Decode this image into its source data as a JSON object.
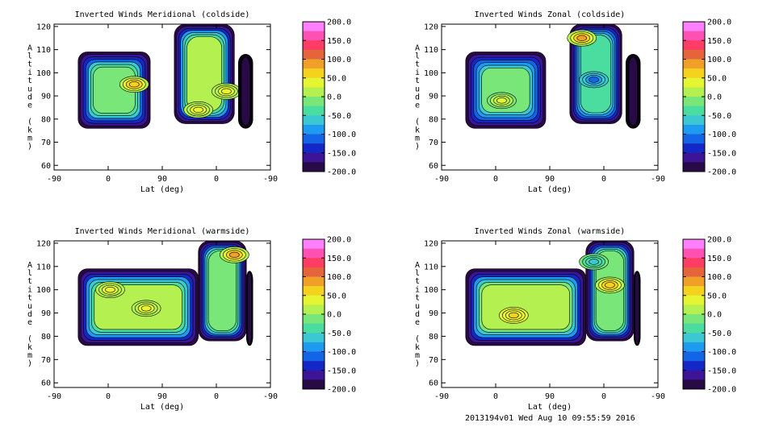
{
  "footer": "2013194v01 Wed Aug 10 09:55:59 2016",
  "colorbar": {
    "labels": [
      "200.0",
      "150.0",
      "100.0",
      "50.0",
      "0.0",
      "-50.0",
      "-100.0",
      "-150.0",
      "-200.0"
    ],
    "colors": [
      "#ff80ff",
      "#ff50b4",
      "#ff3c64",
      "#e6643c",
      "#f0a028",
      "#f5d21e",
      "#e6f532",
      "#b4f050",
      "#78e678",
      "#4bdca0",
      "#3cc8d2",
      "#1e9bf0",
      "#1464e6",
      "#1428c8",
      "#3c1496",
      "#280a46"
    ]
  },
  "chart_data": [
    {
      "type": "heatmap",
      "title": "Inverted Winds Meridional (coldside)",
      "xlabel": "Lat (deg)",
      "ylabel": "Altitude (km)",
      "xticks": [
        "-90",
        "0",
        "90",
        "0",
        "-90"
      ],
      "yticks": [
        "60",
        "70",
        "80",
        "90",
        "100",
        "110",
        "120"
      ],
      "ylim": [
        58,
        121
      ],
      "clim": [
        -200,
        200
      ],
      "segments": [
        {
          "x": [
            -60,
            30
          ],
          "y": [
            76,
            109
          ],
          "mean": -5
        },
        {
          "x": [
            60,
            135
          ],
          "y": [
            78,
            121
          ],
          "mean": 5
        },
        {
          "x": [
            140,
            158
          ],
          "y": [
            76,
            108
          ],
          "mean": -210
        }
      ],
      "extremes": [
        {
          "x": 10,
          "y": 95,
          "value": 75
        },
        {
          "x": 90,
          "y": 84,
          "value": 35
        },
        {
          "x": 125,
          "y": 92,
          "value": 40
        }
      ]
    },
    {
      "type": "heatmap",
      "title": "Inverted Winds Zonal (coldside)",
      "xlabel": "Lat (deg)",
      "ylabel": "Altitude (km)",
      "xticks": [
        "-90",
        "0",
        "90",
        "0",
        "-90"
      ],
      "yticks": [
        "60",
        "70",
        "80",
        "90",
        "100",
        "110",
        "120"
      ],
      "ylim": [
        58,
        121
      ],
      "clim": [
        -200,
        200
      ],
      "segments": [
        {
          "x": [
            -60,
            40
          ],
          "y": [
            76,
            109
          ],
          "mean": -20
        },
        {
          "x": [
            70,
            135
          ],
          "y": [
            78,
            121
          ],
          "mean": -30
        },
        {
          "x": [
            140,
            158
          ],
          "y": [
            76,
            108
          ],
          "mean": -210
        }
      ],
      "extremes": [
        {
          "x": -15,
          "y": 88,
          "value": 40
        },
        {
          "x": 85,
          "y": 115,
          "value": 95
        },
        {
          "x": 100,
          "y": 97,
          "value": -110
        }
      ]
    },
    {
      "type": "heatmap",
      "title": "Inverted Winds Meridional (warmside)",
      "xlabel": "Lat (deg)",
      "ylabel": "Altitude (km)",
      "xticks": [
        "-90",
        "0",
        "90",
        "0",
        "-90"
      ],
      "yticks": [
        "60",
        "70",
        "80",
        "90",
        "100",
        "110",
        "120"
      ],
      "ylim": [
        58,
        121
      ],
      "clim": [
        -200,
        200
      ],
      "segments": [
        {
          "x": [
            -60,
            90
          ],
          "y": [
            76,
            109
          ],
          "mean": 5
        },
        {
          "x": [
            90,
            150
          ],
          "y": [
            78,
            121
          ],
          "mean": -10
        },
        {
          "x": [
            150,
            158
          ],
          "y": [
            76,
            108
          ],
          "mean": -210
        }
      ],
      "extremes": [
        {
          "x": -20,
          "y": 100,
          "value": 40
        },
        {
          "x": 25,
          "y": 92,
          "value": 45
        },
        {
          "x": 135,
          "y": 115,
          "value": 80
        }
      ]
    },
    {
      "type": "heatmap",
      "title": "Inverted Winds Zonal (warmside)",
      "xlabel": "Lat (deg)",
      "ylabel": "Altitude (km)",
      "xticks": [
        "-90",
        "0",
        "90",
        "0",
        "-90"
      ],
      "yticks": [
        "60",
        "70",
        "80",
        "90",
        "100",
        "110",
        "120"
      ],
      "ylim": [
        58,
        121
      ],
      "clim": [
        -200,
        200
      ],
      "segments": [
        {
          "x": [
            -60,
            90
          ],
          "y": [
            76,
            109
          ],
          "mean": 20
        },
        {
          "x": [
            90,
            150
          ],
          "y": [
            78,
            121
          ],
          "mean": 0
        },
        {
          "x": [
            150,
            158
          ],
          "y": [
            76,
            108
          ],
          "mean": -210
        }
      ],
      "extremes": [
        {
          "x": 0,
          "y": 89,
          "value": 55
        },
        {
          "x": 120,
          "y": 102,
          "value": 70
        },
        {
          "x": 100,
          "y": 112,
          "value": -60
        }
      ]
    }
  ]
}
